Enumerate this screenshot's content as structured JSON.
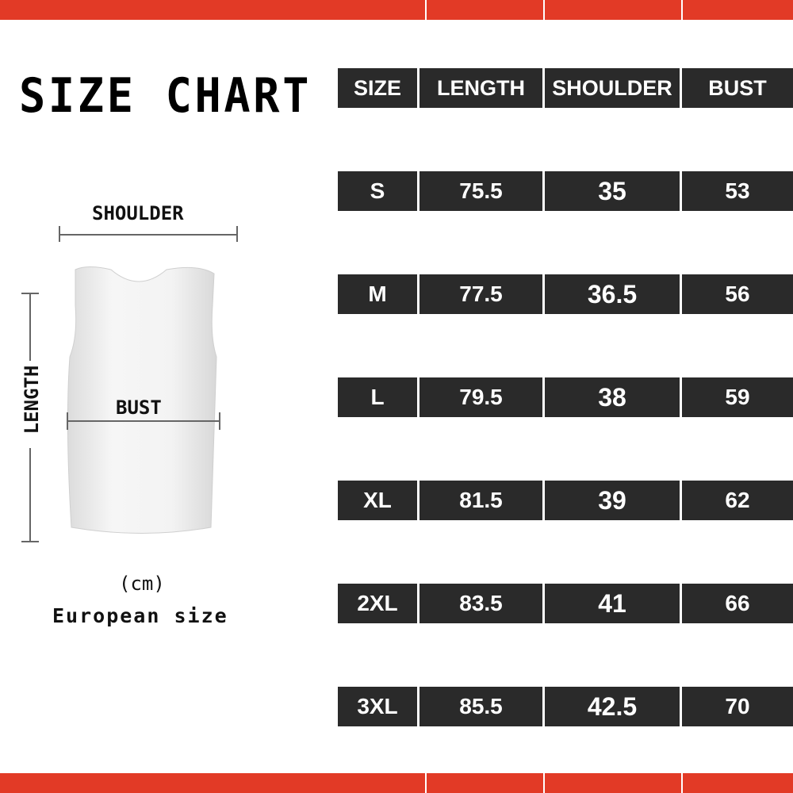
{
  "banner_color": "#e23a26",
  "title": "SIZE CHART",
  "diagram": {
    "shoulder_label": "SHOULDER",
    "length_label": "LENGTH",
    "bust_label": "BUST",
    "unit": "(cm)",
    "region": "European size",
    "garment": "hooded-tank-top"
  },
  "table": {
    "headers": [
      "SIZE",
      "LENGTH",
      "SHOULDER",
      "BUST"
    ],
    "rows": [
      [
        "S",
        "75.5",
        "35",
        "53"
      ],
      [
        "M",
        "77.5",
        "36.5",
        "56"
      ],
      [
        "L",
        "79.5",
        "38",
        "59"
      ],
      [
        "XL",
        "81.5",
        "39",
        "62"
      ],
      [
        "2XL",
        "83.5",
        "41",
        "66"
      ],
      [
        "3XL",
        "85.5",
        "42.5",
        "70"
      ]
    ]
  }
}
